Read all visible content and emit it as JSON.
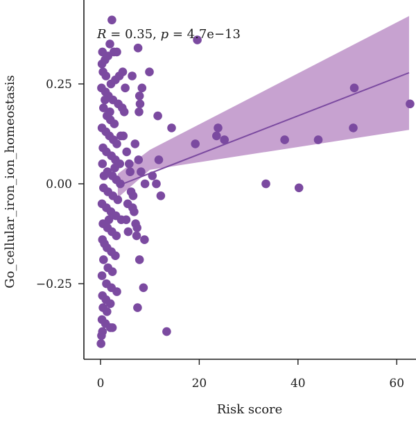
{
  "chart_data": {
    "type": "scatter",
    "title": "",
    "xlabel": "Risk score",
    "ylabel": "Go_cellular_iron_ion_homeostasis",
    "xlim": [
      -3,
      65
    ],
    "ylim": [
      -0.43,
      0.46
    ],
    "xticks": [
      0,
      20,
      40,
      60
    ],
    "xtick_labels": [
      "0",
      "20",
      "40",
      "60"
    ],
    "yticks": [
      -0.25,
      0.0,
      0.25
    ],
    "ytick_labels": [
      "−0.25",
      "0.00",
      "0.25"
    ],
    "annotation": {
      "r_symbol": "R",
      "r_text": " = 0.35, ",
      "p_symbol": "p",
      "p_text": " = 4.7e−13"
    },
    "grid": false,
    "colors": {
      "points": "#7b4aa0",
      "line": "#7b4aa0",
      "band": "#c7a2d0"
    },
    "regression": {
      "x_start": 3.5,
      "x_end": 62.5,
      "y_start": -0.005,
      "y_end": 0.278,
      "band_lower_start": -0.035,
      "band_upper_start": 0.025,
      "band_lower_end": 0.135,
      "band_upper_end": 0.42,
      "band_upper_mid": 0.085,
      "band_lower_mid": 0.035,
      "mid_x": 10
    },
    "points": [
      [
        2.3,
        0.41
      ],
      [
        0.4,
        0.33
      ],
      [
        0.3,
        0.3
      ],
      [
        0.9,
        0.31
      ],
      [
        1.5,
        0.32
      ],
      [
        2.7,
        0.33
      ],
      [
        3.3,
        0.33
      ],
      [
        1.9,
        0.35
      ],
      [
        0.5,
        0.28
      ],
      [
        1.1,
        0.27
      ],
      [
        2.1,
        0.25
      ],
      [
        3.0,
        0.26
      ],
      [
        3.8,
        0.27
      ],
      [
        0.2,
        0.24
      ],
      [
        1.0,
        0.23
      ],
      [
        1.6,
        0.22
      ],
      [
        2.5,
        0.21
      ],
      [
        3.6,
        0.2
      ],
      [
        4.4,
        0.19
      ],
      [
        0.6,
        0.19
      ],
      [
        1.3,
        0.17
      ],
      [
        2.0,
        0.16
      ],
      [
        2.8,
        0.15
      ],
      [
        0.3,
        0.14
      ],
      [
        1.1,
        0.13
      ],
      [
        1.8,
        0.12
      ],
      [
        2.6,
        0.11
      ],
      [
        3.3,
        0.1
      ],
      [
        4.1,
        0.12
      ],
      [
        0.5,
        0.09
      ],
      [
        1.2,
        0.08
      ],
      [
        2.2,
        0.07
      ],
      [
        3.0,
        0.06
      ],
      [
        3.9,
        0.05
      ],
      [
        0.4,
        0.05
      ],
      [
        1.4,
        0.03
      ],
      [
        2.4,
        0.02
      ],
      [
        3.2,
        0.01
      ],
      [
        4.0,
        0.0
      ],
      [
        0.6,
        -0.01
      ],
      [
        1.5,
        -0.02
      ],
      [
        2.5,
        -0.03
      ],
      [
        3.5,
        -0.04
      ],
      [
        0.3,
        -0.05
      ],
      [
        1.2,
        -0.06
      ],
      [
        2.1,
        -0.07
      ],
      [
        3.1,
        -0.08
      ],
      [
        4.2,
        -0.09
      ],
      [
        0.5,
        -0.1
      ],
      [
        1.4,
        -0.11
      ],
      [
        2.3,
        -0.12
      ],
      [
        3.2,
        -0.13
      ],
      [
        0.4,
        -0.14
      ],
      [
        1.3,
        -0.16
      ],
      [
        2.2,
        -0.17
      ],
      [
        3.0,
        -0.18
      ],
      [
        0.6,
        -0.19
      ],
      [
        1.5,
        -0.21
      ],
      [
        2.4,
        -0.22
      ],
      [
        0.3,
        -0.23
      ],
      [
        1.2,
        -0.25
      ],
      [
        2.2,
        -0.26
      ],
      [
        3.3,
        -0.27
      ],
      [
        0.4,
        -0.28
      ],
      [
        1.1,
        -0.29
      ],
      [
        2.0,
        -0.3
      ],
      [
        0.5,
        -0.31
      ],
      [
        1.3,
        -0.32
      ],
      [
        0.3,
        -0.34
      ],
      [
        1.0,
        -0.35
      ],
      [
        0.4,
        -0.37
      ],
      [
        0.2,
        -0.38
      ],
      [
        0.1,
        -0.4
      ],
      [
        2.0,
        -0.36
      ],
      [
        0.8,
        -0.15
      ],
      [
        1.7,
        -0.09
      ],
      [
        2.9,
        0.04
      ],
      [
        1.9,
        0.18
      ],
      [
        0.9,
        0.21
      ],
      [
        0.7,
        0.02
      ],
      [
        4.5,
        0.28
      ],
      [
        5.0,
        0.24
      ],
      [
        4.8,
        0.18
      ],
      [
        4.6,
        0.12
      ],
      [
        5.3,
        0.08
      ],
      [
        5.8,
        0.05
      ],
      [
        6.0,
        0.03
      ],
      [
        6.2,
        -0.02
      ],
      [
        5.5,
        -0.05
      ],
      [
        6.5,
        -0.06
      ],
      [
        5.2,
        -0.09
      ],
      [
        6.8,
        -0.07
      ],
      [
        7.1,
        -0.1
      ],
      [
        5.6,
        -0.12
      ],
      [
        7.3,
        -0.13
      ],
      [
        6.4,
        0.27
      ],
      [
        7.6,
        0.34
      ],
      [
        7.9,
        0.22
      ],
      [
        8.4,
        0.24
      ],
      [
        8.0,
        0.2
      ],
      [
        7.8,
        0.18
      ],
      [
        9.9,
        0.28
      ],
      [
        7.0,
        0.1
      ],
      [
        7.7,
        0.06
      ],
      [
        8.2,
        0.03
      ],
      [
        9.0,
        0.0
      ],
      [
        10.5,
        0.02
      ],
      [
        11.3,
        0.0
      ],
      [
        11.8,
        0.06
      ],
      [
        12.2,
        -0.03
      ],
      [
        11.6,
        0.17
      ],
      [
        14.4,
        0.14
      ],
      [
        8.7,
        -0.26
      ],
      [
        7.9,
        -0.19
      ],
      [
        8.9,
        -0.14
      ],
      [
        7.5,
        -0.31
      ],
      [
        13.4,
        -0.37
      ],
      [
        2.4,
        -0.36
      ],
      [
        6.6,
        -0.03
      ],
      [
        7.4,
        -0.11
      ],
      [
        19.6,
        0.36
      ],
      [
        19.2,
        0.1
      ],
      [
        23.5,
        0.12
      ],
      [
        23.8,
        0.14
      ],
      [
        25.1,
        0.11
      ],
      [
        33.5,
        0.0
      ],
      [
        37.3,
        0.11
      ],
      [
        40.2,
        -0.01
      ],
      [
        44.1,
        0.11
      ],
      [
        51.4,
        0.24
      ],
      [
        51.2,
        0.14
      ],
      [
        62.7,
        0.2
      ]
    ]
  }
}
